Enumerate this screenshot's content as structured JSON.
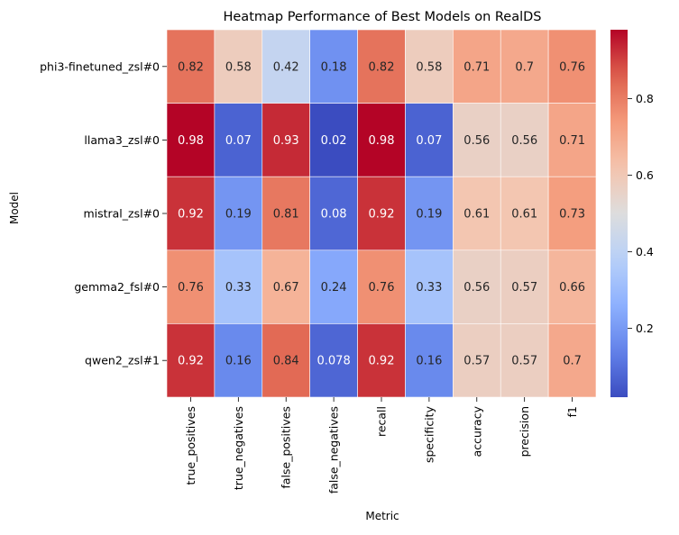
{
  "chart_data": {
    "type": "heatmap",
    "title": "Heatmap Performance of Best Models on RealDS",
    "xlabel": "Metric",
    "ylabel": "Model",
    "columns": [
      "true_positives",
      "true_negatives",
      "false_positives",
      "false_negatives",
      "recall",
      "specificity",
      "accuracy",
      "precision",
      "f1"
    ],
    "rows": [
      "phi3-finetuned_zsl#0",
      "llama3_zsl#0",
      "mistral_zsl#0",
      "gemma2_fsl#0",
      "qwen2_zsl#1"
    ],
    "values": [
      [
        0.82,
        0.58,
        0.42,
        0.18,
        0.82,
        0.58,
        0.71,
        0.7,
        0.76
      ],
      [
        0.98,
        0.07,
        0.93,
        0.02,
        0.98,
        0.07,
        0.56,
        0.56,
        0.71
      ],
      [
        0.92,
        0.19,
        0.81,
        0.08,
        0.92,
        0.19,
        0.61,
        0.61,
        0.73
      ],
      [
        0.76,
        0.33,
        0.67,
        0.24,
        0.76,
        0.33,
        0.56,
        0.57,
        0.66
      ],
      [
        0.92,
        0.16,
        0.84,
        0.078,
        0.92,
        0.16,
        0.57,
        0.57,
        0.7
      ]
    ],
    "labels": [
      [
        "0.82",
        "0.58",
        "0.42",
        "0.18",
        "0.82",
        "0.58",
        "0.71",
        "0.7",
        "0.76"
      ],
      [
        "0.98",
        "0.07",
        "0.93",
        "0.02",
        "0.98",
        "0.07",
        "0.56",
        "0.56",
        "0.71"
      ],
      [
        "0.92",
        "0.19",
        "0.81",
        "0.08",
        "0.92",
        "0.19",
        "0.61",
        "0.61",
        "0.73"
      ],
      [
        "0.76",
        "0.33",
        "0.67",
        "0.24",
        "0.76",
        "0.33",
        "0.56",
        "0.57",
        "0.66"
      ],
      [
        "0.92",
        "0.16",
        "0.84",
        "0.078",
        "0.92",
        "0.16",
        "0.57",
        "0.57",
        "0.7"
      ]
    ],
    "colormap": "coolwarm",
    "vmin": 0.02,
    "vmax": 0.98,
    "colorbar_ticks": [
      0.2,
      0.4,
      0.6,
      0.8
    ],
    "colorbar_tick_labels": [
      "0.2",
      "0.4",
      "0.6",
      "0.8"
    ],
    "colors": {
      "cell_border": "#ffffff",
      "text_dark": "#262626",
      "text_light": "#ffffff"
    }
  }
}
